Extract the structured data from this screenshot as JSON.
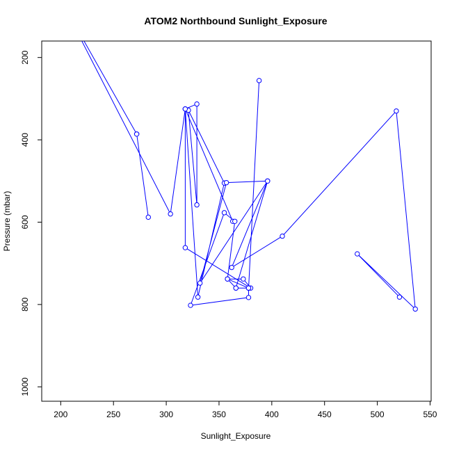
{
  "chart_data": {
    "type": "line",
    "title": "ATOM2 Northbound Sunlight_Exposure",
    "xlabel": "Sunlight_Exposure",
    "ylabel": "Pressure (mbar)",
    "xlim": [
      182,
      551
    ],
    "ylim": [
      1035,
      160
    ],
    "y_reversed": true,
    "x_ticks": [
      200,
      250,
      300,
      350,
      400,
      450,
      500,
      550
    ],
    "y_ticks": [
      200,
      400,
      600,
      800,
      1000
    ],
    "grid": false,
    "legend": "none",
    "series": [
      {
        "color": "#0000ff",
        "marker": "open-circle",
        "points": [
          [
            200,
            60
          ],
          [
            272,
            386
          ],
          [
            283,
            588
          ],
          [
            272,
            386
          ],
          [
            200,
            60
          ],
          [
            304,
            580
          ],
          [
            318,
            325
          ],
          [
            363,
            598
          ],
          [
            318,
            325
          ],
          [
            329,
            313
          ],
          [
            329,
            558
          ],
          [
            321,
            328
          ],
          [
            355,
            505
          ],
          [
            330,
            782
          ],
          [
            318,
            325
          ],
          [
            318,
            662
          ],
          [
            380,
            760
          ],
          [
            373,
            738
          ],
          [
            358,
            738
          ],
          [
            378,
            760
          ],
          [
            366,
            760
          ],
          [
            378,
            760
          ],
          [
            388,
            256
          ],
          [
            378,
            760
          ],
          [
            378,
            783
          ],
          [
            323,
            802
          ],
          [
            355,
            577
          ],
          [
            365,
            598
          ],
          [
            358,
            738
          ],
          [
            366,
            760
          ],
          [
            396,
            500
          ],
          [
            332,
            748
          ],
          [
            357,
            504
          ],
          [
            396,
            500
          ],
          [
            362,
            710
          ],
          [
            410,
            634
          ],
          [
            518,
            330
          ],
          [
            536,
            811
          ],
          [
            481,
            677
          ],
          [
            521,
            782
          ]
        ]
      }
    ]
  },
  "colors": {
    "series": "#0000ff",
    "axis": "#000000",
    "background": "#ffffff"
  }
}
